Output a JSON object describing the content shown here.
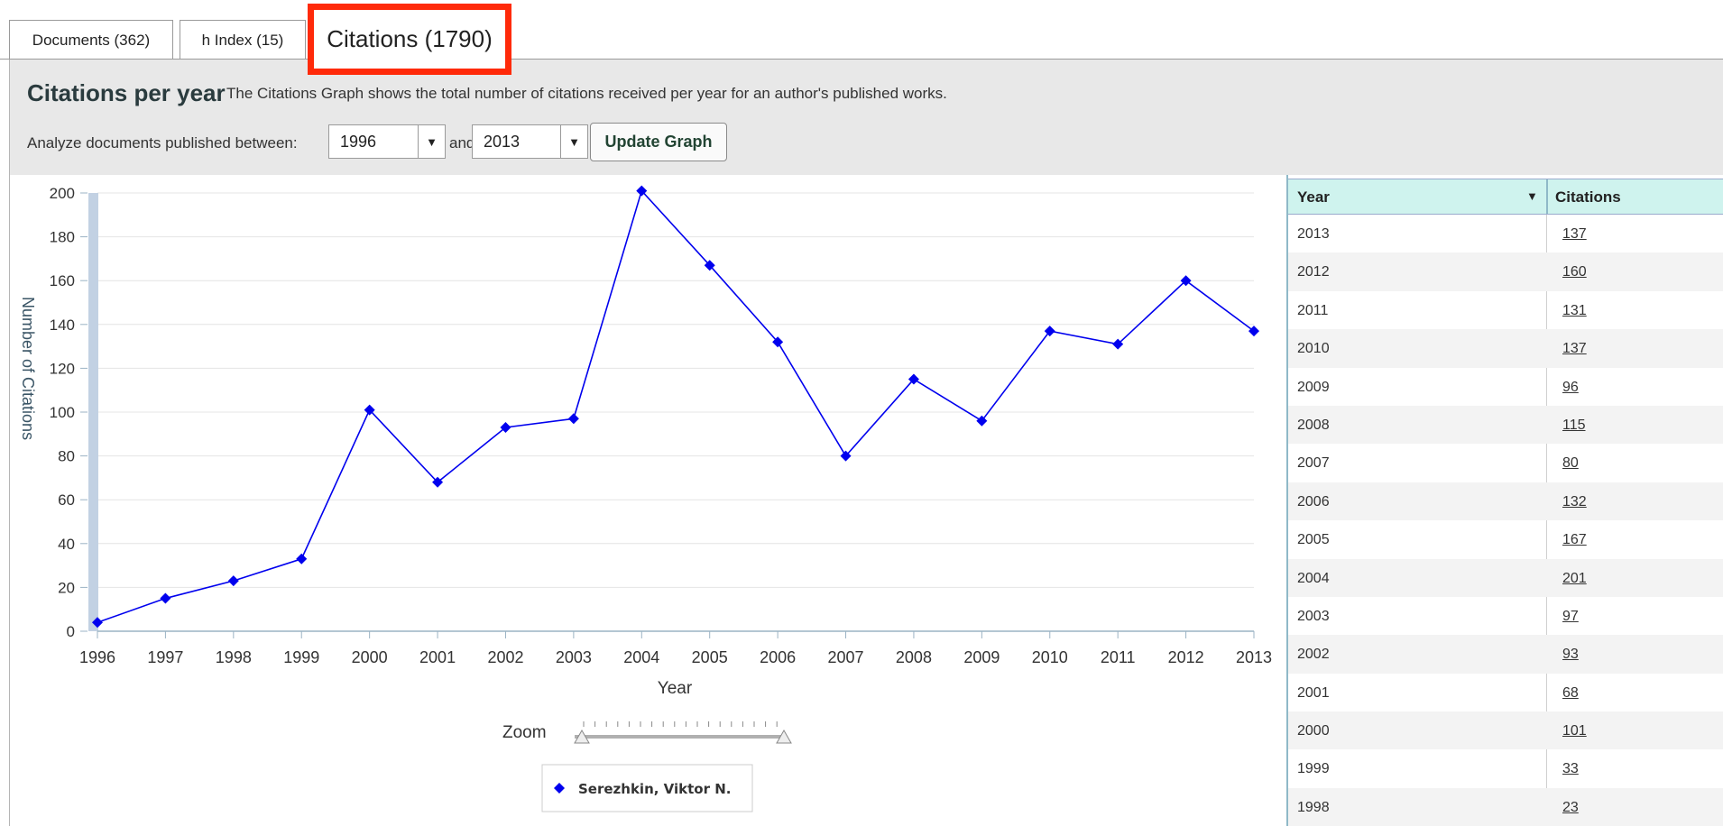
{
  "tabs": [
    {
      "label": "Documents (362)"
    },
    {
      "label": "h Index (15)"
    },
    {
      "label": "Citations (1790)"
    }
  ],
  "panel": {
    "title": "Citations per year",
    "description": "The Citations Graph shows the total number of citations received per year for an author's published works.",
    "range_label": "Analyze documents published between:",
    "start_year": "1996",
    "and_label": "and",
    "end_year": "2013",
    "update_button": "Update Graph"
  },
  "zoom_label": "Zoom",
  "chart_data": {
    "type": "line",
    "x": [
      1996,
      1997,
      1998,
      1999,
      2000,
      2001,
      2002,
      2003,
      2004,
      2005,
      2006,
      2007,
      2008,
      2009,
      2010,
      2011,
      2012,
      2013
    ],
    "series": [
      {
        "name": "Serezhkin, Viktor N.",
        "values": [
          4,
          15,
          23,
          33,
          101,
          68,
          93,
          97,
          201,
          167,
          132,
          80,
          115,
          96,
          137,
          131,
          160,
          137
        ]
      }
    ],
    "xlabel": "Year",
    "ylabel": "Number of Citations",
    "yticks": [
      0,
      20,
      40,
      60,
      80,
      100,
      120,
      140,
      160,
      180,
      200
    ],
    "ylim": [
      0,
      200
    ],
    "xlim": [
      1996,
      2013
    ],
    "grid": true,
    "legend": "bottom-center",
    "color": "#0000ee"
  },
  "table": {
    "col_year": "Year",
    "col_citations": "Citations",
    "sort_icon": "▼",
    "rows": [
      {
        "year": "2013",
        "citations": "137"
      },
      {
        "year": "2012",
        "citations": "160"
      },
      {
        "year": "2011",
        "citations": "131"
      },
      {
        "year": "2010",
        "citations": "137"
      },
      {
        "year": "2009",
        "citations": "96"
      },
      {
        "year": "2008",
        "citations": "115"
      },
      {
        "year": "2007",
        "citations": "80"
      },
      {
        "year": "2006",
        "citations": "132"
      },
      {
        "year": "2005",
        "citations": "167"
      },
      {
        "year": "2004",
        "citations": "201"
      },
      {
        "year": "2003",
        "citations": "97"
      },
      {
        "year": "2002",
        "citations": "93"
      },
      {
        "year": "2001",
        "citations": "68"
      },
      {
        "year": "2000",
        "citations": "101"
      },
      {
        "year": "1999",
        "citations": "33"
      },
      {
        "year": "1998",
        "citations": "23"
      }
    ]
  }
}
